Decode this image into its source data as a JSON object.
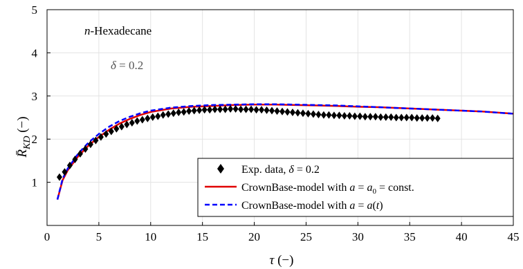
{
  "chart_data": {
    "type": "line",
    "xlabel": "τ (−)",
    "ylabel": "R̄KD (−)",
    "xlim": [
      0,
      45
    ],
    "ylim": [
      0,
      5
    ],
    "xticks": [
      "0",
      "5",
      "10",
      "15",
      "20",
      "25",
      "30",
      "35",
      "40",
      "45"
    ],
    "yticks": [
      "1",
      "2",
      "3",
      "4",
      "5"
    ],
    "grid": true,
    "legend_position": "bottom-right",
    "annotations": [
      "n-Hexadecane",
      "δ = 0.2"
    ],
    "series": [
      {
        "name": "Exp. data, δ = 0.2",
        "marker": "diamond",
        "color": "#000000",
        "x": [
          1.2,
          1.7,
          2.2,
          2.7,
          3.2,
          3.7,
          4.2,
          4.7,
          5.2,
          5.7,
          6.2,
          6.7,
          7.2,
          7.7,
          8.2,
          8.7,
          9.2,
          9.7,
          10.2,
          10.7,
          11.2,
          11.7,
          12.2,
          12.7,
          13.2,
          13.7,
          14.2,
          14.7,
          15.2,
          15.7,
          16.2,
          16.7,
          17.2,
          17.7,
          18.2,
          18.7,
          19.2,
          19.7,
          20.2,
          20.7,
          21.2,
          21.7,
          22.2,
          22.7,
          23.2,
          23.7,
          24.2,
          24.7,
          25.2,
          25.7,
          26.2,
          26.7,
          27.2,
          27.7,
          28.2,
          28.7,
          29.2,
          29.7,
          30.2,
          30.7,
          31.2,
          31.7,
          32.2,
          32.7,
          33.2,
          33.7,
          34.2,
          34.7,
          35.2,
          35.7,
          36.2,
          36.7,
          37.2,
          37.7
        ],
        "y": [
          1.12,
          1.24,
          1.39,
          1.53,
          1.66,
          1.77,
          1.88,
          1.97,
          2.05,
          2.12,
          2.18,
          2.24,
          2.29,
          2.34,
          2.38,
          2.42,
          2.45,
          2.48,
          2.51,
          2.53,
          2.56,
          2.58,
          2.6,
          2.62,
          2.63,
          2.65,
          2.66,
          2.67,
          2.68,
          2.68,
          2.69,
          2.69,
          2.69,
          2.7,
          2.7,
          2.69,
          2.69,
          2.69,
          2.68,
          2.68,
          2.67,
          2.66,
          2.65,
          2.64,
          2.63,
          2.62,
          2.61,
          2.6,
          2.59,
          2.58,
          2.57,
          2.56,
          2.56,
          2.55,
          2.55,
          2.54,
          2.54,
          2.53,
          2.53,
          2.52,
          2.52,
          2.52,
          2.51,
          2.51,
          2.51,
          2.5,
          2.5,
          2.5,
          2.5,
          2.49,
          2.49,
          2.49,
          2.49,
          2.48
        ]
      },
      {
        "name": "CrownBase-model with a = a0 = const.",
        "color": "#e00000",
        "x": [
          1.0,
          1.5,
          2,
          3,
          4,
          5,
          6,
          7,
          8,
          9,
          10,
          12,
          14,
          16,
          18,
          20,
          22,
          24,
          26,
          28,
          30,
          32,
          34,
          36,
          38,
          40,
          42,
          45
        ],
        "y": [
          0.6,
          1.05,
          1.28,
          1.6,
          1.85,
          2.05,
          2.22,
          2.36,
          2.47,
          2.56,
          2.63,
          2.71,
          2.75,
          2.77,
          2.79,
          2.8,
          2.8,
          2.79,
          2.78,
          2.77,
          2.75,
          2.74,
          2.72,
          2.7,
          2.68,
          2.66,
          2.64,
          2.59
        ]
      },
      {
        "name": "CrownBase-model with a = a(t)",
        "color": "#0000ff",
        "dashed": true,
        "x": [
          1.0,
          1.5,
          2,
          3,
          4,
          5,
          6,
          7,
          8,
          9,
          10,
          12,
          14,
          16,
          18,
          20,
          22,
          24,
          26,
          28,
          30,
          32,
          34,
          36,
          38,
          40,
          42,
          45
        ],
        "y": [
          0.6,
          1.08,
          1.32,
          1.66,
          1.92,
          2.12,
          2.29,
          2.42,
          2.52,
          2.6,
          2.66,
          2.73,
          2.77,
          2.79,
          2.8,
          2.81,
          2.81,
          2.8,
          2.79,
          2.78,
          2.76,
          2.74,
          2.72,
          2.7,
          2.68,
          2.66,
          2.64,
          2.59
        ]
      }
    ]
  },
  "legend": {
    "entries": [
      {
        "text": "Exp. data, δ = 0.2"
      },
      {
        "text": "CrownBase-model with a = a0 = const."
      },
      {
        "text": "CrownBase-model with a = a(t)"
      }
    ]
  }
}
